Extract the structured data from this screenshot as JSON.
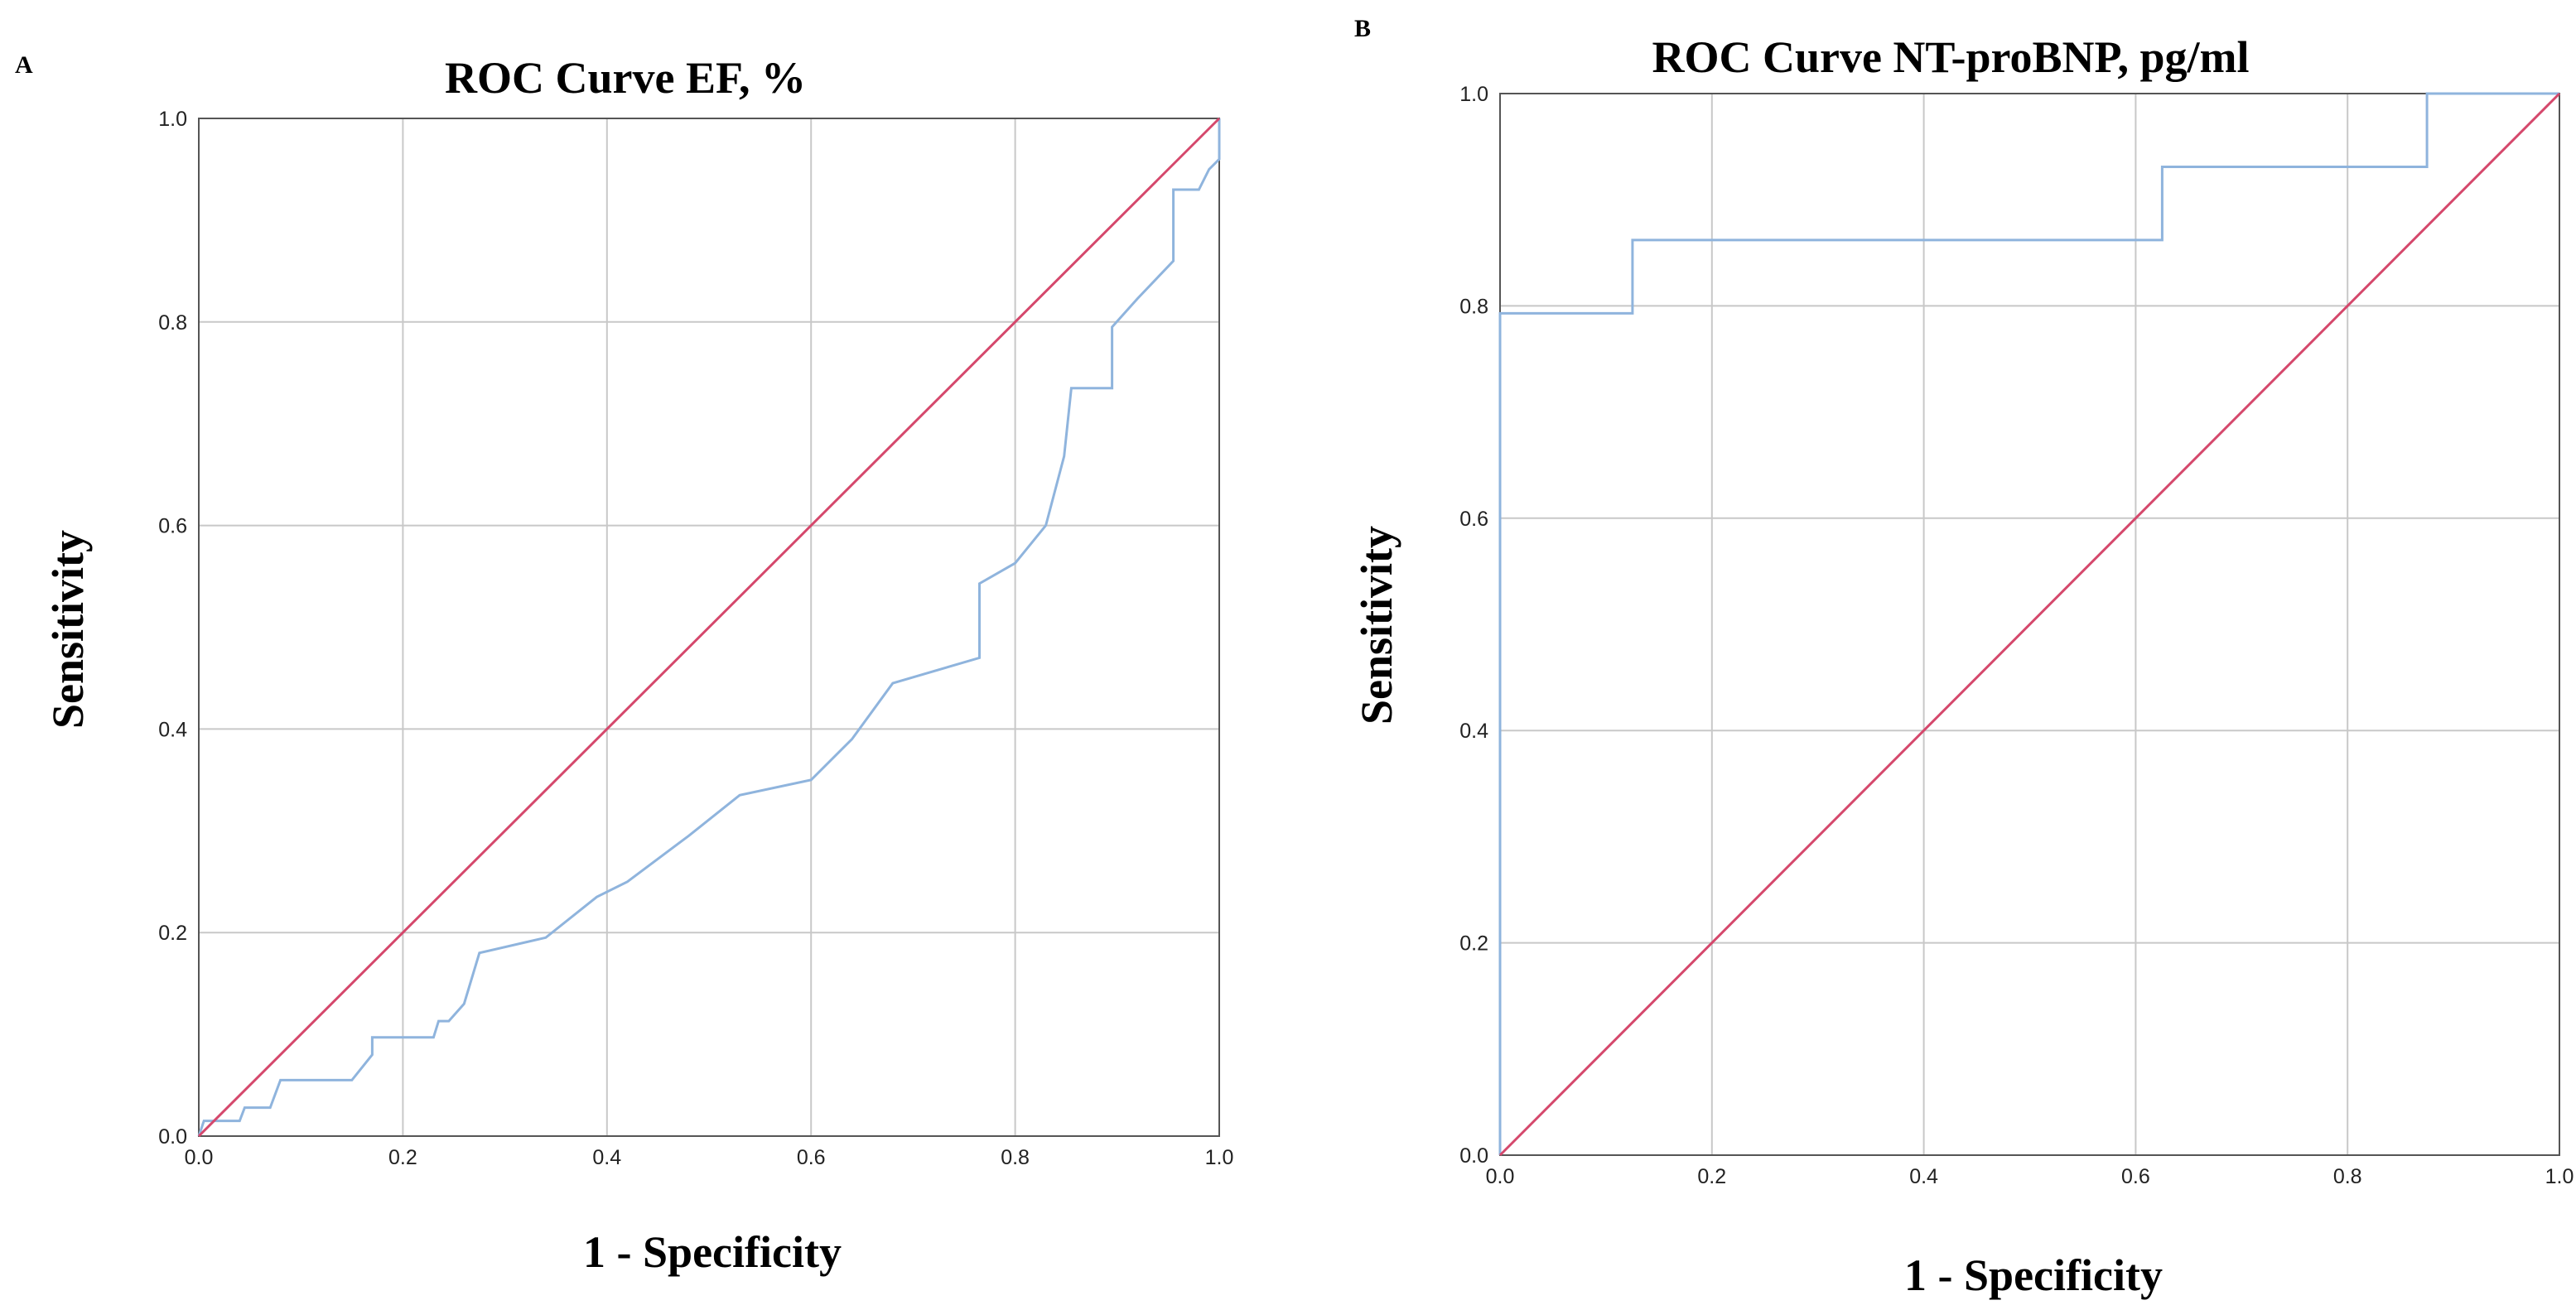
{
  "panels": [
    {
      "letter": "A",
      "chart_data": {
        "type": "line",
        "title": "ROC Curve EF, %",
        "xlabel": "1 - Specificity",
        "ylabel": "Sensitivity",
        "xlim": [
          0,
          1
        ],
        "ylim": [
          0,
          1
        ],
        "xticks": [
          "0.0",
          "0.2",
          "0.4",
          "0.6",
          "0.8",
          "1.0"
        ],
        "yticks": [
          "0.0",
          "0.2",
          "0.4",
          "0.6",
          "0.8",
          "1.0"
        ],
        "grid": true,
        "series": [
          {
            "color": "#8fb4dd",
            "points": [
              [
                0,
                0
              ],
              [
                0.005,
                0.015
              ],
              [
                0.04,
                0.015
              ],
              [
                0.045,
                0.028
              ],
              [
                0.07,
                0.028
              ],
              [
                0.08,
                0.055
              ],
              [
                0.15,
                0.055
              ],
              [
                0.17,
                0.08
              ],
              [
                0.17,
                0.097
              ],
              [
                0.23,
                0.097
              ],
              [
                0.235,
                0.113
              ],
              [
                0.245,
                0.113
              ],
              [
                0.26,
                0.13
              ],
              [
                0.275,
                0.18
              ],
              [
                0.34,
                0.195
              ],
              [
                0.39,
                0.235
              ],
              [
                0.42,
                0.25
              ],
              [
                0.48,
                0.295
              ],
              [
                0.53,
                0.335
              ],
              [
                0.6,
                0.35
              ],
              [
                0.64,
                0.39
              ],
              [
                0.68,
                0.445
              ],
              [
                0.765,
                0.47
              ],
              [
                0.765,
                0.543
              ],
              [
                0.8,
                0.563
              ],
              [
                0.83,
                0.6
              ],
              [
                0.848,
                0.668
              ],
              [
                0.855,
                0.735
              ],
              [
                0.895,
                0.735
              ],
              [
                0.895,
                0.795
              ],
              [
                0.92,
                0.823
              ],
              [
                0.955,
                0.86
              ],
              [
                0.955,
                0.93
              ],
              [
                0.98,
                0.93
              ],
              [
                0.99,
                0.95
              ],
              [
                1.0,
                0.96
              ],
              [
                1.0,
                1.0
              ]
            ]
          },
          {
            "color": "#d5486c",
            "points": [
              [
                0,
                0
              ],
              [
                1,
                1
              ]
            ]
          }
        ]
      }
    },
    {
      "letter": "B",
      "chart_data": {
        "type": "line",
        "title": "ROC Curve NT-proBNP, pg/ml",
        "xlabel": "1 - Specificity",
        "ylabel": "Sensitivity",
        "xlim": [
          0,
          1
        ],
        "ylim": [
          0,
          1
        ],
        "xticks": [
          "0.0",
          "0.2",
          "0.4",
          "0.6",
          "0.8",
          "1.0"
        ],
        "yticks": [
          "0.0",
          "0.2",
          "0.4",
          "0.6",
          "0.8",
          "1.0"
        ],
        "grid": true,
        "series": [
          {
            "color": "#8fb4dd",
            "points": [
              [
                0,
                0
              ],
              [
                0,
                0.793
              ],
              [
                0.125,
                0.793
              ],
              [
                0.125,
                0.862
              ],
              [
                0.625,
                0.862
              ],
              [
                0.625,
                0.931
              ],
              [
                0.875,
                0.931
              ],
              [
                0.875,
                1.0
              ],
              [
                1.0,
                1.0
              ]
            ]
          },
          {
            "color": "#d5486c",
            "points": [
              [
                0,
                0
              ],
              [
                1,
                1
              ]
            ]
          }
        ]
      }
    }
  ]
}
